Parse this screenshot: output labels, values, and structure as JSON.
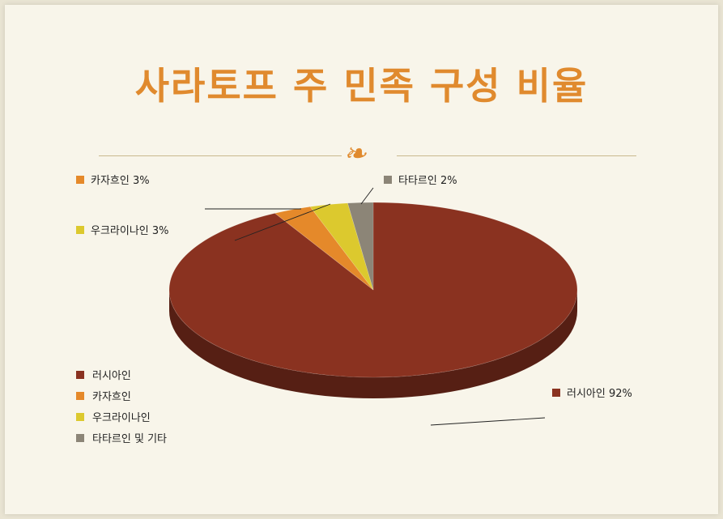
{
  "slide": {
    "title": "사라토프 주 민족 구성 비율"
  },
  "colors": {
    "russian": "#8a3220",
    "kazakh": "#e5892a",
    "ukrainian": "#dcc92e",
    "tatar": "#8c8577",
    "accent": "#e08a2e"
  },
  "chart_data": {
    "type": "pie",
    "title": "사라토프 주 민족 구성 비율",
    "slices": [
      {
        "label": "러시아인",
        "value": 92,
        "data_label": "러시아인 92%",
        "color": "#8a3220"
      },
      {
        "label": "카자흐인",
        "value": 3,
        "data_label": "카자흐인 3%",
        "color": "#e5892a"
      },
      {
        "label": "우크라이나인",
        "value": 3,
        "data_label": "우크라이나인 3%",
        "color": "#dcc92e"
      },
      {
        "label": "타타르인 및 기타",
        "value": 2,
        "data_label": "타타르인 2%",
        "color": "#8c8577"
      }
    ],
    "legend": {
      "placement": "bottom-left",
      "entries": [
        "러시아인",
        "카자흐인",
        "우크라이나인",
        "타타르인 및 기타"
      ]
    }
  }
}
